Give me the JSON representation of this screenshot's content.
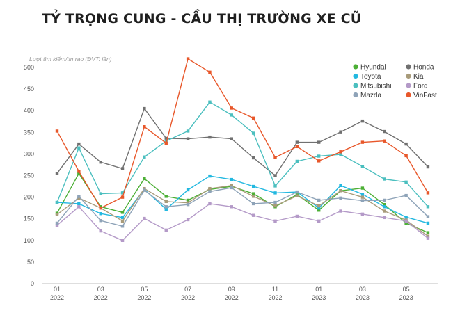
{
  "chart_data": {
    "type": "line",
    "title": "TỶ TRỌNG CUNG - CẦU THỊ TRƯỜNG XE CŨ",
    "ylabel": "Lượt tìm kiếm/tin rao (ĐVT: lần)",
    "xlabel": "",
    "ylim": [
      0,
      500
    ],
    "yticks": [
      0,
      50,
      100,
      150,
      200,
      250,
      300,
      350,
      400,
      450,
      500
    ],
    "x_tick_labels": [
      {
        "month": "01",
        "year": "2022",
        "index": 0
      },
      {
        "month": "03",
        "year": "2022",
        "index": 2
      },
      {
        "month": "05",
        "year": "2022",
        "index": 4
      },
      {
        "month": "07",
        "year": "2022",
        "index": 6
      },
      {
        "month": "09",
        "year": "2022",
        "index": 8
      },
      {
        "month": "11",
        "year": "2022",
        "index": 10
      },
      {
        "month": "01",
        "year": "2023",
        "index": 12
      },
      {
        "month": "03",
        "year": "2023",
        "index": 14
      },
      {
        "month": "05",
        "year": "2023",
        "index": 16
      }
    ],
    "x": [
      "01/2022",
      "02/2022",
      "03/2022",
      "04/2022",
      "05/2022",
      "06/2022",
      "07/2022",
      "08/2022",
      "09/2022",
      "10/2022",
      "11/2022",
      "12/2022",
      "01/2023",
      "02/2023",
      "03/2023",
      "04/2023",
      "05/2023",
      "06/2023"
    ],
    "legend_position": "top-right",
    "grid": false,
    "series": [
      {
        "name": "Hyundai",
        "color": "#4caf35",
        "values": [
          163,
          255,
          178,
          165,
          243,
          202,
          193,
          218,
          225,
          208,
          178,
          206,
          170,
          215,
          221,
          183,
          140,
          118
        ]
      },
      {
        "name": "Honda",
        "color": "#707070",
        "values": [
          255,
          323,
          281,
          266,
          405,
          336,
          335,
          339,
          335,
          291,
          250,
          327,
          327,
          351,
          376,
          352,
          323,
          270
        ]
      },
      {
        "name": "Toyota",
        "color": "#22b8e0",
        "values": [
          188,
          185,
          162,
          153,
          218,
          172,
          217,
          249,
          241,
          225,
          210,
          212,
          175,
          227,
          207,
          178,
          154,
          140
        ]
      },
      {
        "name": "Kia",
        "color": "#a89b7a",
        "values": [
          160,
          198,
          175,
          145,
          220,
          190,
          187,
          220,
          227,
          202,
          180,
          203,
          180,
          215,
          200,
          168,
          147,
          110
        ]
      },
      {
        "name": "Mitsubishi",
        "color": "#4bbfbf",
        "values": [
          188,
          314,
          208,
          210,
          293,
          330,
          353,
          420,
          390,
          348,
          226,
          283,
          295,
          299,
          271,
          242,
          235,
          178
        ]
      },
      {
        "name": "Ford",
        "color": "#b49ac8",
        "values": [
          135,
          178,
          122,
          100,
          151,
          124,
          148,
          185,
          178,
          158,
          145,
          156,
          145,
          168,
          161,
          153,
          145,
          105
        ]
      },
      {
        "name": "Mazda",
        "color": "#8ea3b8",
        "values": [
          140,
          202,
          146,
          133,
          216,
          178,
          183,
          213,
          222,
          185,
          188,
          212,
          193,
          198,
          192,
          193,
          204,
          155
        ]
      },
      {
        "name": "VinFast",
        "color": "#e8572a",
        "values": [
          353,
          260,
          175,
          200,
          363,
          325,
          520,
          489,
          406,
          383,
          292,
          317,
          284,
          305,
          327,
          330,
          296,
          210
        ]
      }
    ]
  }
}
